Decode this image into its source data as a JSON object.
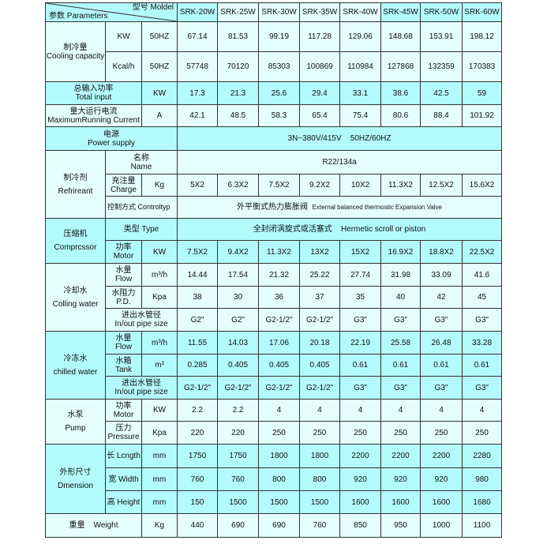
{
  "header": {
    "model_label": "型号 Moldel",
    "param_label": "参数 Parameters",
    "models": [
      "SRK-20W",
      "SRK-25W",
      "SRK-30W",
      "SRK-35W",
      "SRK-40W",
      "SRK-45W",
      "SRK-50W",
      "SRK-60W"
    ]
  },
  "cooling": {
    "cn": "制冷量",
    "en": "Cooling capacity",
    "kw": {
      "unit": "KW",
      "freq": "50HZ",
      "values": [
        "67.14",
        "81.53",
        "99.19",
        "117.28",
        "129.06",
        "148.68",
        "153.91",
        "198.12"
      ]
    },
    "kcal": {
      "unit": "Kcal/h",
      "freq": "50HZ",
      "values": [
        "57748",
        "70120",
        "85303",
        "100869",
        "110984",
        "127868",
        "132359",
        "170383"
      ]
    }
  },
  "total_input": {
    "cn": "总输入功率",
    "en": "Total input",
    "unit": "KW",
    "values": [
      "17.3",
      "21.3",
      "25.6",
      "29.4",
      "33.1",
      "38.6",
      "42.5",
      "59"
    ]
  },
  "max_current": {
    "cn": "量大运行电流",
    "en": "MaximumRunning Current",
    "unit": "A",
    "values": [
      "42.1",
      "48.5",
      "58.3",
      "65.4",
      "75.4",
      "80.6",
      "88.4",
      "101.92"
    ]
  },
  "power": {
    "cn": "电源",
    "en": "Power supply",
    "value": "3N~380V/415V    50HZ/60HZ"
  },
  "refrigerant": {
    "cn": "制冷剂",
    "en": "Refrireant",
    "name": {
      "cn": "名称",
      "en": "Name",
      "value": "R22/134a"
    },
    "charge": {
      "cn": "充注量",
      "en": "Charge",
      "unit": "Kg",
      "values": [
        "5X2",
        "6.3X2",
        "7.5X2",
        "9.2X2",
        "10X2",
        "11.3X2",
        "12.5X2",
        "15.6X2"
      ]
    },
    "control": {
      "label": "控制方式  Controltyp",
      "value_cn": "外平衡式热力膨胀阀",
      "value_en": "External balanced thermostic Expansion Valve"
    }
  },
  "compressor": {
    "cn": "压缩机",
    "en": "Comprcssor",
    "type": {
      "label": "类型 Type",
      "value_cn": "全封闭涡旋式或活塞式",
      "value_en": "Hermetic scroll or piston"
    },
    "motor": {
      "cn": "功率",
      "en": "Motor",
      "unit": "KW",
      "values": [
        "7.5X2",
        "9.4X2",
        "11.3X2",
        "13X2",
        "15X2",
        "16.9X2",
        "18.8X2",
        "22.5X2"
      ]
    }
  },
  "cooling_water": {
    "cn": "冷却水",
    "en": "Colling water",
    "flow": {
      "cn": "水量",
      "en": "Flow",
      "unit": "m³/h",
      "values": [
        "14.44",
        "17.54",
        "21.32",
        "25.22",
        "27.74",
        "31.98",
        "33.09",
        "41.6"
      ]
    },
    "pd": {
      "cn": "水阻力",
      "en": "P.D.",
      "unit": "Kpa",
      "values": [
        "38",
        "30",
        "36",
        "37",
        "35",
        "40",
        "42",
        "45"
      ]
    },
    "pipe": {
      "cn": "进出水管径",
      "en": "In/out pipe size",
      "values": [
        "G2\"",
        "G2\"",
        "G2-1/2\"",
        "G2-1/2\"",
        "G3\"",
        "G3\"",
        "G3\"",
        "G3\""
      ]
    }
  },
  "chilled_water": {
    "cn": "冷冻水",
    "en": "chilled water",
    "flow": {
      "cn": "水量",
      "en": "Flow",
      "unit": "m³/h",
      "values": [
        "11.55",
        "14.03",
        "17.06",
        "20.18",
        "22.19",
        "25.58",
        "26.48",
        "33.28"
      ]
    },
    "tank": {
      "cn": "水箱",
      "en": "Tank",
      "unit": "m³",
      "values": [
        "0.285",
        "0.405",
        "0.405",
        "0.405",
        "0.61",
        "0.61",
        "0.61",
        "0.61"
      ]
    },
    "pipe": {
      "cn": "进出水管径",
      "en": "In/out pipe size",
      "values": [
        "G2-1/2\"",
        "G2-1/2\"",
        "G2-1/2\"",
        "G2-1/2\"",
        "G3\"",
        "G3\"",
        "G3\"",
        "G3\""
      ]
    }
  },
  "pump": {
    "cn": "水泵",
    "en": "Pump",
    "motor": {
      "cn": "功率",
      "en": "Motor",
      "unit": "KW",
      "values": [
        "2.2",
        "2.2",
        "4",
        "4",
        "4",
        "4",
        "4",
        "4"
      ]
    },
    "pressure": {
      "cn": "压力",
      "en": "Pressure",
      "unit": "Kpa",
      "values": [
        "220",
        "220",
        "250",
        "250",
        "250",
        "250",
        "250",
        "250"
      ]
    }
  },
  "dimension": {
    "cn": "外形尺寸",
    "en": "Dmension",
    "length": {
      "label": "长 Lcngth",
      "unit": "mm",
      "values": [
        "1750",
        "1750",
        "1800",
        "1800",
        "2200",
        "2200",
        "2200",
        "2280"
      ]
    },
    "width": {
      "label": "宽 Width",
      "unit": "mm",
      "values": [
        "760",
        "760",
        "800",
        "800",
        "920",
        "920",
        "920",
        "980"
      ]
    },
    "height": {
      "label": "高 Height",
      "unit": "mm",
      "values": [
        "150",
        "1500",
        "1500",
        "1500",
        "1600",
        "1600",
        "1600",
        "1680"
      ]
    }
  },
  "weight": {
    "label": "重量    Weight",
    "unit": "Kg",
    "values": [
      "440",
      "690",
      "690",
      "760",
      "850",
      "950",
      "1000",
      "1100"
    ]
  },
  "colors": {
    "light_row": "#e4fdfd",
    "dark_row": "#b3fafc",
    "border": "#333333"
  }
}
